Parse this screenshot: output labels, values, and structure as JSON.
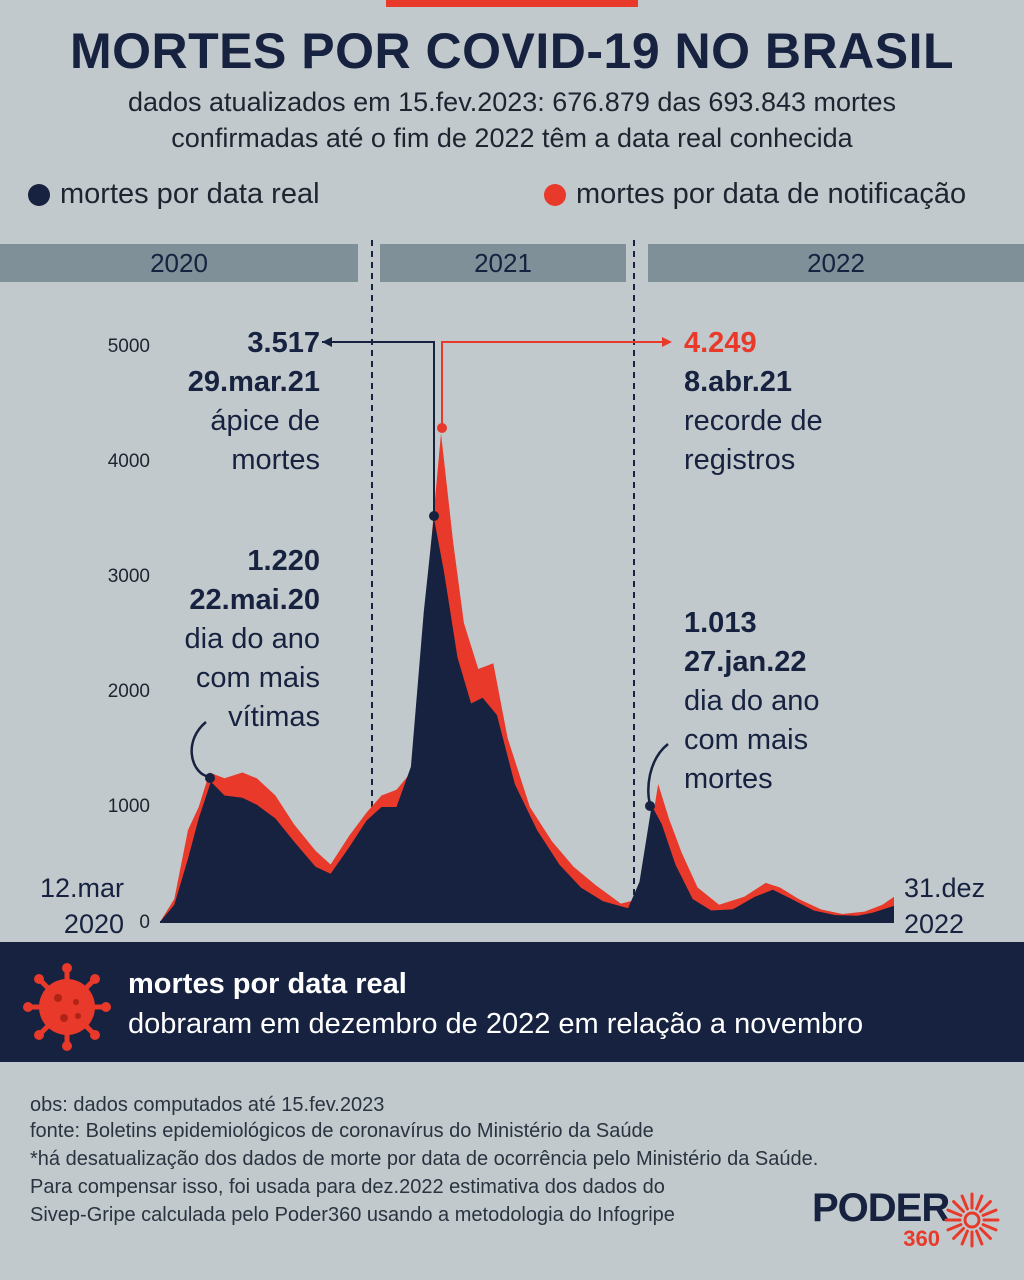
{
  "header": {
    "title": "MORTES POR COVID-19 NO BRASIL",
    "subtitle_line1": "dados atualizados em 15.fev.2023: 676.879 das 693.843 mortes",
    "subtitle_line2": "confirmadas até o fim de 2022 têm a data real conhecida"
  },
  "legend": {
    "dark_label": "mortes por data real",
    "red_label": "mortes por data de notificação"
  },
  "colors": {
    "dark": "#16223f",
    "red": "#e8392a",
    "background": "#c1c9cc",
    "yearbar": "#7f9098"
  },
  "years": [
    "2020",
    "2021",
    "2022"
  ],
  "chart_data": {
    "type": "area",
    "x_start": "12.mar 2020",
    "x_end": "31.dez 2022",
    "yticks": [
      "0",
      "1000",
      "2000",
      "3000",
      "4000",
      "5000"
    ],
    "ylim": [
      0,
      5000
    ],
    "series": [
      {
        "name": "mortes por data real",
        "color": "#16223f",
        "points": [
          [
            "2020-03-12",
            0
          ],
          [
            "2020-04-01",
            150
          ],
          [
            "2020-04-20",
            550
          ],
          [
            "2020-05-05",
            900
          ],
          [
            "2020-05-22",
            1220
          ],
          [
            "2020-06-10",
            1100
          ],
          [
            "2020-07-05",
            1080
          ],
          [
            "2020-07-25",
            1020
          ],
          [
            "2020-08-20",
            900
          ],
          [
            "2020-09-15",
            700
          ],
          [
            "2020-10-15",
            480
          ],
          [
            "2020-11-05",
            420
          ],
          [
            "2020-12-01",
            650
          ],
          [
            "2020-12-25",
            880
          ],
          [
            "2021-01-15",
            1000
          ],
          [
            "2021-02-05",
            1000
          ],
          [
            "2021-02-25",
            1350
          ],
          [
            "2021-03-15",
            2700
          ],
          [
            "2021-03-29",
            3517
          ],
          [
            "2021-04-12",
            3050
          ],
          [
            "2021-05-01",
            2300
          ],
          [
            "2021-05-20",
            1900
          ],
          [
            "2021-06-05",
            1950
          ],
          [
            "2021-06-25",
            1800
          ],
          [
            "2021-07-20",
            1200
          ],
          [
            "2021-08-20",
            800
          ],
          [
            "2021-09-20",
            500
          ],
          [
            "2021-10-20",
            300
          ],
          [
            "2021-11-20",
            180
          ],
          [
            "2021-12-25",
            120
          ],
          [
            "2022-01-10",
            350
          ],
          [
            "2022-01-27",
            1013
          ],
          [
            "2022-02-10",
            850
          ],
          [
            "2022-03-01",
            500
          ],
          [
            "2022-03-25",
            200
          ],
          [
            "2022-04-20",
            100
          ],
          [
            "2022-05-20",
            110
          ],
          [
            "2022-06-20",
            220
          ],
          [
            "2022-07-15",
            280
          ],
          [
            "2022-08-10",
            200
          ],
          [
            "2022-09-10",
            100
          ],
          [
            "2022-10-10",
            60
          ],
          [
            "2022-11-10",
            55
          ],
          [
            "2022-12-01",
            80
          ],
          [
            "2022-12-31",
            140
          ]
        ]
      },
      {
        "name": "mortes por data de notificação",
        "color": "#e8392a",
        "points": [
          [
            "2020-03-12",
            0
          ],
          [
            "2020-04-01",
            200
          ],
          [
            "2020-04-20",
            800
          ],
          [
            "2020-05-05",
            1000
          ],
          [
            "2020-05-20",
            1300
          ],
          [
            "2020-06-10",
            1250
          ],
          [
            "2020-07-05",
            1300
          ],
          [
            "2020-07-25",
            1250
          ],
          [
            "2020-08-20",
            1100
          ],
          [
            "2020-09-15",
            850
          ],
          [
            "2020-10-15",
            620
          ],
          [
            "2020-11-05",
            500
          ],
          [
            "2020-12-01",
            750
          ],
          [
            "2020-12-25",
            950
          ],
          [
            "2021-01-15",
            1100
          ],
          [
            "2021-02-05",
            1150
          ],
          [
            "2021-02-25",
            1300
          ],
          [
            "2021-03-15",
            2600
          ],
          [
            "2021-04-08",
            4249
          ],
          [
            "2021-04-25",
            3300
          ],
          [
            "2021-05-10",
            2600
          ],
          [
            "2021-05-30",
            2200
          ],
          [
            "2021-06-20",
            2250
          ],
          [
            "2021-07-10",
            1600
          ],
          [
            "2021-08-10",
            1000
          ],
          [
            "2021-09-10",
            700
          ],
          [
            "2021-10-10",
            480
          ],
          [
            "2021-11-10",
            320
          ],
          [
            "2021-12-15",
            160
          ],
          [
            "2022-01-10",
            200
          ],
          [
            "2022-02-05",
            1200
          ],
          [
            "2022-02-20",
            900
          ],
          [
            "2022-03-10",
            600
          ],
          [
            "2022-04-01",
            300
          ],
          [
            "2022-05-01",
            150
          ],
          [
            "2022-06-05",
            220
          ],
          [
            "2022-07-05",
            340
          ],
          [
            "2022-07-25",
            300
          ],
          [
            "2022-08-20",
            200
          ],
          [
            "2022-09-20",
            110
          ],
          [
            "2022-10-20",
            70
          ],
          [
            "2022-11-20",
            90
          ],
          [
            "2022-12-15",
            150
          ],
          [
            "2022-12-31",
            220
          ]
        ]
      }
    ],
    "annotations": [
      {
        "value": "3.517",
        "date": "29.mar.21",
        "line1": "ápice de",
        "line2": "mortes"
      },
      {
        "value": "4.249",
        "date": "8.abr.21",
        "line1": "recorde de",
        "line2": "registros"
      },
      {
        "value": "1.220",
        "date": "22.mai.20",
        "line1": "dia do ano",
        "line2": "com mais",
        "line3": "vítimas"
      },
      {
        "value": "1.013",
        "date": "27.jan.22",
        "line1": "dia do ano",
        "line2": "com mais",
        "line3": "mortes"
      }
    ]
  },
  "x_labels": {
    "start_line1": "12.mar",
    "start_line2": "2020",
    "end_line1": "31.dez",
    "end_line2": "2022"
  },
  "banner": {
    "title": "mortes por data real",
    "text": "dobraram em dezembro de 2022 em relação a novembro",
    "icon": "virus-icon"
  },
  "footnotes": {
    "line1": "obs: dados computados até 15.fev.2023",
    "line2": "fonte: Boletins epidemiológicos de coronavírus do Ministério da Saúde",
    "line3": "*há desatualização dos dados de morte por data de ocorrência pelo Ministério da Saúde.",
    "line4": "Para compensar isso, foi usada para dez.2022 estimativa dos dados do",
    "line5": "Sivep-Gripe calculada pelo Poder360 usando a metodologia do Infogripe"
  },
  "logo": {
    "text": "PODER",
    "subtext": "360"
  }
}
